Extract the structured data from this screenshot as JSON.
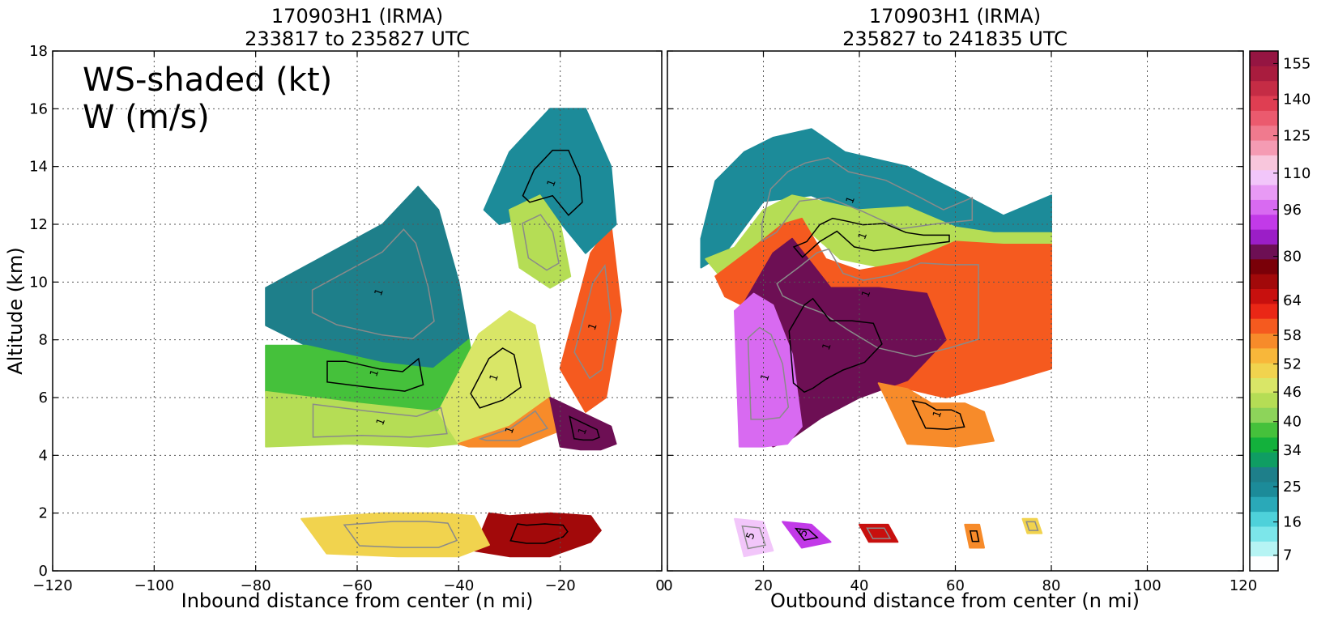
{
  "chart_data": [
    {
      "type": "heatmap",
      "title_line1": "170903H1 (IRMA)",
      "title_line2": "233817 to 235827 UTC",
      "xlabel": "Inbound distance from center (n mi)",
      "ylabel": "Altitude (km)",
      "xlim": [
        -120,
        0
      ],
      "ylim": [
        0,
        18
      ],
      "x_ticks": [
        -120,
        -100,
        -80,
        -60,
        -40,
        -20,
        0
      ],
      "y_ticks": [
        0,
        2,
        4,
        6,
        8,
        10,
        12,
        14,
        16,
        18
      ],
      "grid": true,
      "annotation_line1": "WS-shaded (kt)",
      "annotation_line2": "W (m/s)",
      "contour_labels": [
        "1",
        "1",
        "1",
        "1",
        "1",
        "1",
        "1",
        "1"
      ],
      "regions": [
        {
          "x": [
            -78,
            -55,
            -48,
            -44,
            -40,
            -38,
            -45,
            -55,
            -70,
            -78
          ],
          "y": [
            9.8,
            12.0,
            13.3,
            12.5,
            10.0,
            8.0,
            7.0,
            7.2,
            7.8,
            8.5
          ],
          "ws": 25
        },
        {
          "x": [
            -78,
            -70,
            -55,
            -45,
            -38,
            -36,
            -44,
            -60,
            -78
          ],
          "y": [
            7.8,
            7.8,
            7.2,
            7.0,
            8.0,
            6.0,
            5.5,
            5.8,
            6.2
          ],
          "ws": 34
        },
        {
          "x": [
            -78,
            -60,
            -44,
            -36,
            -34,
            -46,
            -62,
            -78
          ],
          "y": [
            6.2,
            5.8,
            5.5,
            6.0,
            4.5,
            4.3,
            4.4,
            4.3
          ],
          "ws": 40
        },
        {
          "x": [
            -44,
            -36,
            -30,
            -25,
            -22,
            -30,
            -40
          ],
          "y": [
            5.5,
            8.2,
            9.0,
            8.5,
            6.0,
            5.0,
            4.4
          ],
          "ws": 43
        },
        {
          "x": [
            -40,
            -30,
            -22,
            -18,
            -28,
            -38
          ],
          "y": [
            4.4,
            5.0,
            6.0,
            5.0,
            4.3,
            4.3
          ],
          "ws": 52
        },
        {
          "x": [
            -22,
            -16,
            -10,
            -9,
            -12,
            -16,
            -20
          ],
          "y": [
            6.0,
            5.5,
            5.0,
            4.4,
            4.2,
            4.2,
            4.3
          ],
          "ws": 72
        },
        {
          "x": [
            -20,
            -14,
            -10,
            -8,
            -11,
            -15
          ],
          "y": [
            7.0,
            11.0,
            12.0,
            9.0,
            6.0,
            5.5
          ],
          "ws": 55
        },
        {
          "x": [
            -35,
            -30,
            -22,
            -15,
            -10,
            -9,
            -15,
            -22,
            -32
          ],
          "y": [
            12.5,
            14.5,
            16.0,
            16.0,
            14.0,
            12.0,
            11.0,
            12.5,
            12.0
          ],
          "ws": 22
        },
        {
          "x": [
            -30,
            -24,
            -20,
            -18,
            -22,
            -28
          ],
          "y": [
            12.5,
            13.0,
            12.0,
            10.2,
            9.8,
            10.5
          ],
          "ws": 38
        },
        {
          "x": [
            -34,
            -30,
            -22,
            -14,
            -12,
            -14,
            -22,
            -30,
            -37
          ],
          "y": [
            2.0,
            1.9,
            2.0,
            1.9,
            1.4,
            1.0,
            0.5,
            0.5,
            0.7
          ],
          "ws": 62
        },
        {
          "x": [
            -71,
            -55,
            -44,
            -37,
            -34,
            -40,
            -52,
            -66
          ],
          "y": [
            1.8,
            2.0,
            2.0,
            1.9,
            0.9,
            0.5,
            0.5,
            0.6
          ],
          "ws": 46
        }
      ],
      "ws_max": 80
    },
    {
      "type": "heatmap",
      "title_line1": "170903H1 (IRMA)",
      "title_line2": "235827 to 241835 UTC",
      "xlabel": "Outbound distance from center (n mi)",
      "ylabel": "",
      "xlim": [
        0,
        120
      ],
      "ylim": [
        0,
        18
      ],
      "x_ticks": [
        0,
        20,
        40,
        60,
        80,
        100,
        120
      ],
      "y_ticks": [
        0,
        2,
        4,
        6,
        8,
        10,
        12,
        14,
        16,
        18
      ],
      "grid": true,
      "contour_labels": [
        "1",
        "1",
        "1",
        "1",
        "1",
        "1",
        "5",
        "5"
      ],
      "regions": [
        {
          "x": [
            7,
            10,
            16,
            22,
            30,
            37,
            50,
            62,
            70,
            80,
            80,
            68,
            55,
            42,
            30,
            20,
            12,
            7
          ],
          "y": [
            11.5,
            13.5,
            14.5,
            15.0,
            15.3,
            14.5,
            14.0,
            13.0,
            12.3,
            13.0,
            11.7,
            11.5,
            11.2,
            12.2,
            13.0,
            12.8,
            11.0,
            10.5
          ],
          "ws": 22
        },
        {
          "x": [
            8,
            14,
            20,
            26,
            32,
            40,
            50,
            60,
            68,
            80,
            80,
            70,
            55,
            45,
            36,
            28,
            20,
            12
          ],
          "y": [
            10.8,
            11.2,
            12.5,
            13.0,
            12.8,
            12.5,
            12.6,
            11.9,
            11.7,
            11.7,
            11.2,
            11.0,
            10.7,
            10.5,
            10.8,
            12.0,
            11.2,
            10.0
          ],
          "ws": 38
        },
        {
          "x": [
            10,
            18,
            24,
            28,
            33,
            40,
            50,
            60,
            70,
            80,
            80,
            70,
            58,
            45,
            35,
            26,
            18,
            12
          ],
          "y": [
            10.2,
            11.2,
            12.0,
            12.2,
            10.8,
            10.4,
            10.7,
            11.4,
            11.3,
            11.3,
            7.0,
            6.5,
            6.0,
            6.5,
            7.5,
            8.5,
            9.0,
            9.5
          ],
          "ws": 55
        },
        {
          "x": [
            15,
            22,
            26,
            34,
            44,
            54,
            58,
            50,
            40,
            32,
            26,
            22,
            17
          ],
          "y": [
            9.0,
            11.0,
            11.5,
            9.8,
            9.8,
            9.6,
            8.0,
            6.6,
            6.0,
            5.3,
            4.6,
            4.3,
            5.0
          ],
          "ws": 72
        },
        {
          "x": [
            14,
            18,
            22,
            26,
            28,
            25,
            20,
            15
          ],
          "y": [
            9.0,
            9.6,
            9.2,
            7.5,
            5.0,
            4.4,
            4.3,
            4.3
          ],
          "ws": 85
        },
        {
          "x": [
            44,
            50,
            55,
            62,
            66,
            68,
            60,
            50
          ],
          "y": [
            6.5,
            6.3,
            5.8,
            5.8,
            5.5,
            4.5,
            4.3,
            4.4
          ],
          "ws": 52
        },
        {
          "x": [
            14,
            20,
            22,
            16
          ],
          "y": [
            1.8,
            1.7,
            0.7,
            0.5
          ],
          "ws": 100
        },
        {
          "x": [
            24,
            30,
            34,
            28
          ],
          "y": [
            1.7,
            1.6,
            1.0,
            0.8
          ],
          "ws": 80
        },
        {
          "x": [
            40,
            46,
            48,
            42
          ],
          "y": [
            1.6,
            1.6,
            1.0,
            1.0
          ],
          "ws": 60
        },
        {
          "x": [
            62,
            65,
            66,
            63
          ],
          "y": [
            1.6,
            1.6,
            0.8,
            0.8
          ],
          "ws": 52
        },
        {
          "x": [
            74,
            77,
            78,
            75
          ],
          "y": [
            1.8,
            1.8,
            1.3,
            1.3
          ],
          "ws": 46
        }
      ],
      "ws_max": 80
    }
  ],
  "colorbar": {
    "tick_labels": [
      "7",
      "16",
      "25",
      "34",
      "40",
      "46",
      "52",
      "58",
      "64",
      "80",
      "96",
      "110",
      "125",
      "140",
      "155"
    ],
    "colors": [
      "#fdfeff",
      "#b6f4f4",
      "#7ce6ea",
      "#4ed1da",
      "#2aa9b8",
      "#1c8b99",
      "#1e7f8a",
      "#0f9d63",
      "#13b13c",
      "#45c13b",
      "#8dd45a",
      "#b5dd55",
      "#d9e667",
      "#f1d34e",
      "#f8b73a",
      "#f78b2a",
      "#f55a1f",
      "#ea2716",
      "#c8100e",
      "#a2090a",
      "#7a0008",
      "#6d0f54",
      "#9b1ec7",
      "#c23ae8",
      "#d86af1",
      "#e89af5",
      "#f2c6fa",
      "#f8c6dc",
      "#f59bb3",
      "#f07a8e",
      "#eb5a6e",
      "#df3e52",
      "#c52c45",
      "#a91c3e",
      "#951542"
    ]
  },
  "colors": {
    "contour_black": "#000000",
    "contour_gray": "#8a8a8a",
    "grid": "#555555"
  }
}
